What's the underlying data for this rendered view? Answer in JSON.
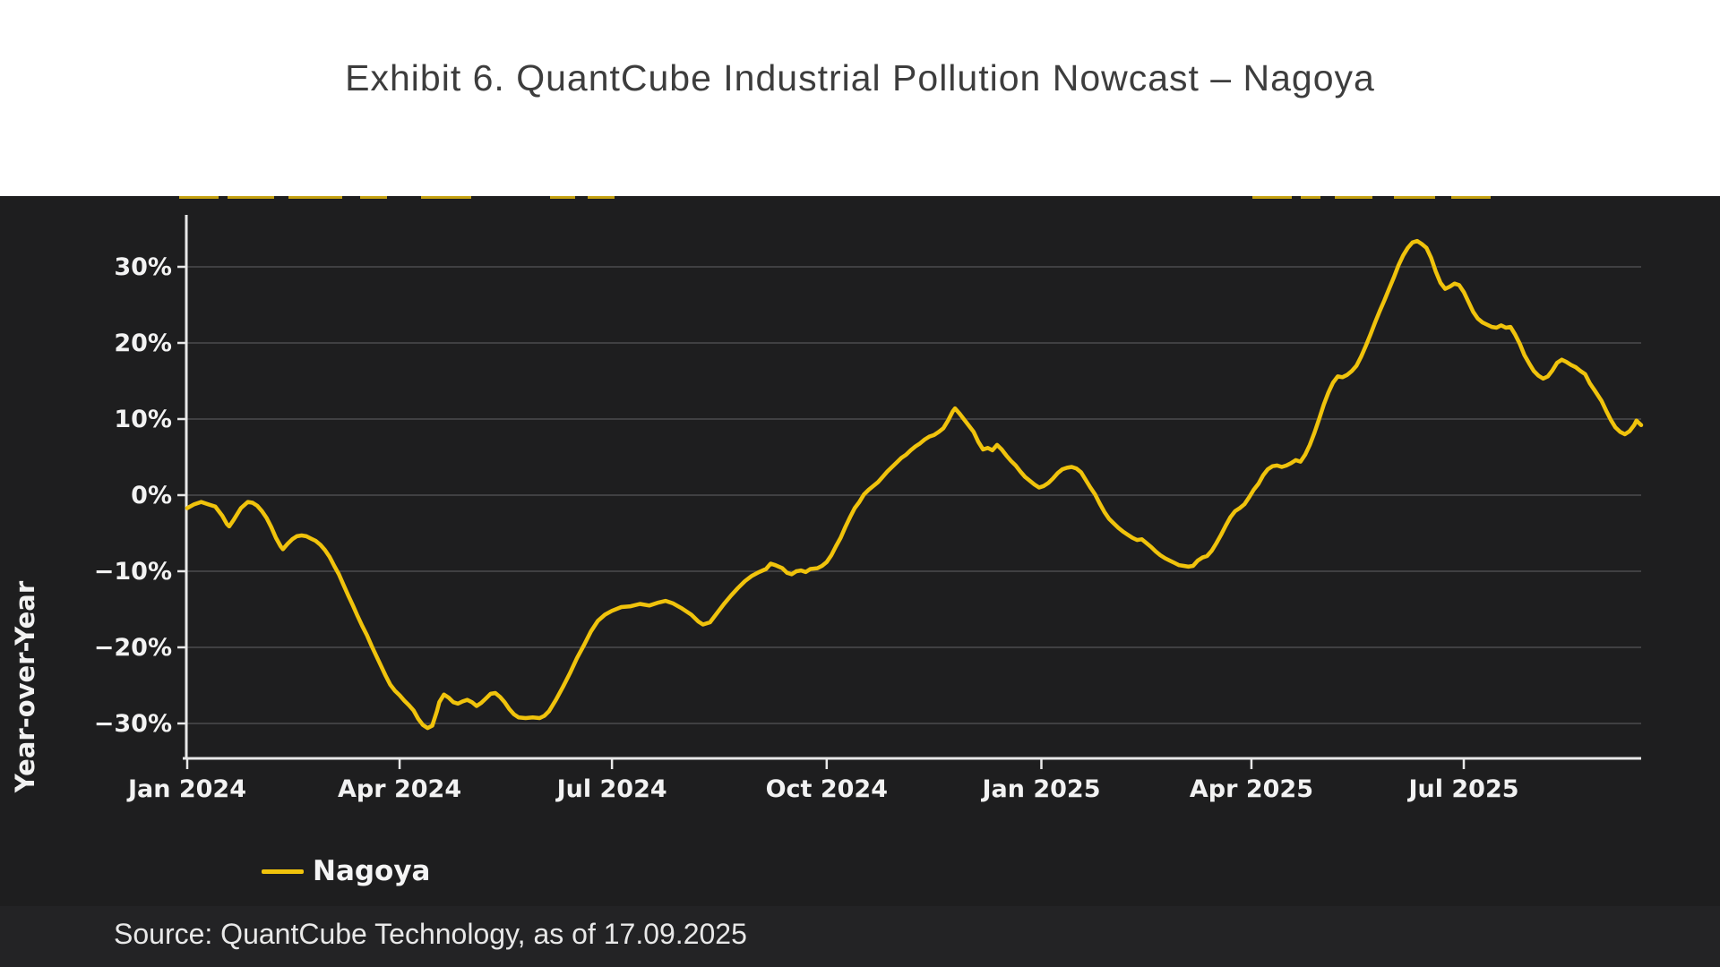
{
  "header": {
    "title": "Exhibit 6. QuantCube Industrial Pollution Nowcast – Nagoya"
  },
  "footer": {
    "source": "Source: QuantCube Technology, as of 17.09.2025"
  },
  "legend": {
    "items": [
      {
        "label": "Nagoya",
        "color": "#f0c30c"
      }
    ]
  },
  "colors": {
    "panel_background": "#1e1e1f",
    "footer_band": "#232325",
    "grid": "#4c4c4e",
    "axis": "#e8e8e8",
    "tick_text": "#f2f2f2",
    "line": "#f0c30c",
    "title_text": "#3d3d3d"
  },
  "chart_data": {
    "type": "line",
    "title": "Exhibit 6. QuantCube Industrial Pollution Nowcast – Nagoya",
    "xlabel": "",
    "ylabel": "Year-over-Year",
    "x_unit": "days since 2024-01-01",
    "xlim_days": [
      0,
      623
    ],
    "ylim": [
      -34.5,
      36.8
    ],
    "grid": "horizontal",
    "legend_position": "bottom-left",
    "yticks": [
      {
        "value": 30,
        "label": "30%"
      },
      {
        "value": 20,
        "label": "20%"
      },
      {
        "value": 10,
        "label": "10%"
      },
      {
        "value": 0,
        "label": "0%"
      },
      {
        "value": -10,
        "label": "−10%"
      },
      {
        "value": -20,
        "label": "−20%"
      },
      {
        "value": -30,
        "label": "−30%"
      }
    ],
    "xticks": [
      {
        "day": 0,
        "label": "Jan 2024"
      },
      {
        "day": 91,
        "label": "Apr 2024"
      },
      {
        "day": 182,
        "label": "Jul 2024"
      },
      {
        "day": 274,
        "label": "Oct 2024"
      },
      {
        "day": 366,
        "label": "Jan 2025"
      },
      {
        "day": 456,
        "label": "Apr 2025"
      },
      {
        "day": 547,
        "label": "Jul 2025"
      }
    ],
    "series": [
      {
        "name": "Nagoya",
        "color": "#f0c30c",
        "points": [
          [
            0,
            -1.7
          ],
          [
            3,
            -1.2
          ],
          [
            6,
            -0.9
          ],
          [
            9,
            -1.2
          ],
          [
            12,
            -1.5
          ],
          [
            15,
            -2.7
          ],
          [
            17,
            -3.8
          ],
          [
            18,
            -4.1
          ],
          [
            20,
            -3.2
          ],
          [
            23,
            -1.7
          ],
          [
            26,
            -0.9
          ],
          [
            28,
            -1.0
          ],
          [
            30,
            -1.4
          ],
          [
            32,
            -2.1
          ],
          [
            34,
            -3.0
          ],
          [
            36,
            -4.2
          ],
          [
            38,
            -5.6
          ],
          [
            40,
            -6.7
          ],
          [
            41,
            -7.1
          ],
          [
            43,
            -6.4
          ],
          [
            45,
            -5.8
          ],
          [
            47,
            -5.4
          ],
          [
            49,
            -5.3
          ],
          [
            51,
            -5.4
          ],
          [
            53,
            -5.7
          ],
          [
            55,
            -6.0
          ],
          [
            57,
            -6.5
          ],
          [
            59,
            -7.2
          ],
          [
            61,
            -8.1
          ],
          [
            63,
            -9.3
          ],
          [
            65,
            -10.4
          ],
          [
            67,
            -11.8
          ],
          [
            69,
            -13.2
          ],
          [
            71,
            -14.5
          ],
          [
            73,
            -15.9
          ],
          [
            75,
            -17.2
          ],
          [
            77,
            -18.4
          ],
          [
            79,
            -19.8
          ],
          [
            81,
            -21.1
          ],
          [
            83,
            -22.4
          ],
          [
            85,
            -23.7
          ],
          [
            87,
            -24.9
          ],
          [
            89,
            -25.7
          ],
          [
            91,
            -26.3
          ],
          [
            93,
            -27.0
          ],
          [
            95,
            -27.6
          ],
          [
            97,
            -28.3
          ],
          [
            99,
            -29.4
          ],
          [
            101,
            -30.2
          ],
          [
            103,
            -30.6
          ],
          [
            105,
            -30.3
          ],
          [
            107,
            -28.4
          ],
          [
            108,
            -27.2
          ],
          [
            110,
            -26.2
          ],
          [
            112,
            -26.6
          ],
          [
            114,
            -27.2
          ],
          [
            116,
            -27.4
          ],
          [
            118,
            -27.1
          ],
          [
            120,
            -26.9
          ],
          [
            122,
            -27.2
          ],
          [
            124,
            -27.7
          ],
          [
            126,
            -27.3
          ],
          [
            128,
            -26.7
          ],
          [
            130,
            -26.1
          ],
          [
            132,
            -26.0
          ],
          [
            134,
            -26.5
          ],
          [
            136,
            -27.2
          ],
          [
            138,
            -28.1
          ],
          [
            140,
            -28.8
          ],
          [
            142,
            -29.2
          ],
          [
            145,
            -29.3
          ],
          [
            148,
            -29.2
          ],
          [
            151,
            -29.3
          ],
          [
            153,
            -29.0
          ],
          [
            155,
            -28.4
          ],
          [
            158,
            -26.9
          ],
          [
            161,
            -25.2
          ],
          [
            164,
            -23.4
          ],
          [
            167,
            -21.4
          ],
          [
            170,
            -19.7
          ],
          [
            173,
            -17.9
          ],
          [
            176,
            -16.5
          ],
          [
            179,
            -15.7
          ],
          [
            182,
            -15.2
          ],
          [
            186,
            -14.7
          ],
          [
            190,
            -14.6
          ],
          [
            194,
            -14.3
          ],
          [
            198,
            -14.5
          ],
          [
            202,
            -14.1
          ],
          [
            205,
            -13.9
          ],
          [
            208,
            -14.2
          ],
          [
            212,
            -14.9
          ],
          [
            216,
            -15.7
          ],
          [
            219,
            -16.6
          ],
          [
            221,
            -17.0
          ],
          [
            224,
            -16.7
          ],
          [
            227,
            -15.5
          ],
          [
            230,
            -14.3
          ],
          [
            233,
            -13.2
          ],
          [
            236,
            -12.2
          ],
          [
            239,
            -11.3
          ],
          [
            242,
            -10.6
          ],
          [
            245,
            -10.1
          ],
          [
            248,
            -9.7
          ],
          [
            250,
            -9.0
          ],
          [
            252,
            -9.2
          ],
          [
            255,
            -9.6
          ],
          [
            257,
            -10.2
          ],
          [
            259,
            -10.4
          ],
          [
            261,
            -10.0
          ],
          [
            263,
            -9.9
          ],
          [
            265,
            -10.1
          ],
          [
            267,
            -9.7
          ],
          [
            270,
            -9.6
          ],
          [
            272,
            -9.3
          ],
          [
            274,
            -8.8
          ],
          [
            276,
            -7.9
          ],
          [
            278,
            -6.7
          ],
          [
            280,
            -5.6
          ],
          [
            282,
            -4.2
          ],
          [
            284,
            -2.9
          ],
          [
            286,
            -1.7
          ],
          [
            288,
            -0.9
          ],
          [
            290,
            0.1
          ],
          [
            292,
            0.7
          ],
          [
            294,
            1.2
          ],
          [
            296,
            1.7
          ],
          [
            298,
            2.4
          ],
          [
            300,
            3.1
          ],
          [
            302,
            3.7
          ],
          [
            304,
            4.3
          ],
          [
            306,
            4.9
          ],
          [
            308,
            5.3
          ],
          [
            310,
            5.9
          ],
          [
            312,
            6.4
          ],
          [
            314,
            6.8
          ],
          [
            316,
            7.3
          ],
          [
            318,
            7.7
          ],
          [
            320,
            7.9
          ],
          [
            322,
            8.3
          ],
          [
            324,
            8.8
          ],
          [
            326,
            9.8
          ],
          [
            328,
            11.0
          ],
          [
            329,
            11.4
          ],
          [
            331,
            10.7
          ],
          [
            333,
            9.9
          ],
          [
            335,
            9.1
          ],
          [
            337,
            8.3
          ],
          [
            339,
            7.0
          ],
          [
            341,
            6.0
          ],
          [
            343,
            6.2
          ],
          [
            345,
            5.9
          ],
          [
            347,
            6.6
          ],
          [
            349,
            6.0
          ],
          [
            351,
            5.2
          ],
          [
            353,
            4.5
          ],
          [
            355,
            3.9
          ],
          [
            357,
            3.1
          ],
          [
            359,
            2.4
          ],
          [
            361,
            1.9
          ],
          [
            363,
            1.4
          ],
          [
            365,
            1.0
          ],
          [
            367,
            1.2
          ],
          [
            369,
            1.6
          ],
          [
            371,
            2.2
          ],
          [
            373,
            2.9
          ],
          [
            375,
            3.4
          ],
          [
            377,
            3.6
          ],
          [
            379,
            3.7
          ],
          [
            381,
            3.5
          ],
          [
            383,
            3.0
          ],
          [
            385,
            2.0
          ],
          [
            387,
            1.0
          ],
          [
            389,
            0.1
          ],
          [
            391,
            -1.1
          ],
          [
            393,
            -2.2
          ],
          [
            395,
            -3.1
          ],
          [
            397,
            -3.7
          ],
          [
            399,
            -4.3
          ],
          [
            401,
            -4.8
          ],
          [
            403,
            -5.2
          ],
          [
            405,
            -5.6
          ],
          [
            407,
            -5.9
          ],
          [
            409,
            -5.8
          ],
          [
            411,
            -6.3
          ],
          [
            413,
            -6.8
          ],
          [
            415,
            -7.4
          ],
          [
            417,
            -7.9
          ],
          [
            419,
            -8.3
          ],
          [
            421,
            -8.6
          ],
          [
            423,
            -8.9
          ],
          [
            425,
            -9.2
          ],
          [
            427,
            -9.3
          ],
          [
            429,
            -9.4
          ],
          [
            431,
            -9.3
          ],
          [
            433,
            -8.6
          ],
          [
            435,
            -8.2
          ],
          [
            437,
            -8.0
          ],
          [
            439,
            -7.3
          ],
          [
            441,
            -6.3
          ],
          [
            443,
            -5.2
          ],
          [
            445,
            -4.0
          ],
          [
            447,
            -2.9
          ],
          [
            449,
            -2.1
          ],
          [
            451,
            -1.7
          ],
          [
            453,
            -1.2
          ],
          [
            455,
            -0.3
          ],
          [
            457,
            0.7
          ],
          [
            459,
            1.5
          ],
          [
            461,
            2.6
          ],
          [
            463,
            3.4
          ],
          [
            465,
            3.8
          ],
          [
            467,
            3.9
          ],
          [
            469,
            3.7
          ],
          [
            471,
            3.9
          ],
          [
            473,
            4.2
          ],
          [
            475,
            4.6
          ],
          [
            477,
            4.4
          ],
          [
            479,
            5.3
          ],
          [
            481,
            6.6
          ],
          [
            483,
            8.2
          ],
          [
            485,
            10.0
          ],
          [
            487,
            11.9
          ],
          [
            489,
            13.5
          ],
          [
            491,
            14.8
          ],
          [
            493,
            15.6
          ],
          [
            495,
            15.5
          ],
          [
            497,
            15.8
          ],
          [
            499,
            16.3
          ],
          [
            501,
            17.0
          ],
          [
            503,
            18.2
          ],
          [
            505,
            19.6
          ],
          [
            507,
            21.1
          ],
          [
            509,
            22.7
          ],
          [
            511,
            24.2
          ],
          [
            513,
            25.6
          ],
          [
            515,
            27.1
          ],
          [
            517,
            28.6
          ],
          [
            519,
            30.2
          ],
          [
            521,
            31.5
          ],
          [
            523,
            32.5
          ],
          [
            525,
            33.2
          ],
          [
            527,
            33.4
          ],
          [
            529,
            33.0
          ],
          [
            531,
            32.5
          ],
          [
            533,
            31.2
          ],
          [
            535,
            29.4
          ],
          [
            537,
            27.9
          ],
          [
            539,
            27.1
          ],
          [
            541,
            27.4
          ],
          [
            543,
            27.8
          ],
          [
            545,
            27.6
          ],
          [
            547,
            26.7
          ],
          [
            549,
            25.4
          ],
          [
            551,
            24.1
          ],
          [
            553,
            23.2
          ],
          [
            555,
            22.7
          ],
          [
            557,
            22.4
          ],
          [
            559,
            22.1
          ],
          [
            561,
            22.0
          ],
          [
            563,
            22.3
          ],
          [
            565,
            22.0
          ],
          [
            567,
            22.1
          ],
          [
            569,
            21.1
          ],
          [
            571,
            19.9
          ],
          [
            573,
            18.4
          ],
          [
            575,
            17.3
          ],
          [
            577,
            16.3
          ],
          [
            579,
            15.7
          ],
          [
            581,
            15.3
          ],
          [
            583,
            15.6
          ],
          [
            585,
            16.4
          ],
          [
            587,
            17.4
          ],
          [
            589,
            17.8
          ],
          [
            591,
            17.5
          ],
          [
            593,
            17.1
          ],
          [
            595,
            16.8
          ],
          [
            597,
            16.3
          ],
          [
            599,
            15.9
          ],
          [
            601,
            14.7
          ],
          [
            603,
            13.8
          ],
          [
            606,
            12.4
          ],
          [
            608,
            11.1
          ],
          [
            610,
            9.9
          ],
          [
            612,
            8.9
          ],
          [
            614,
            8.3
          ],
          [
            616,
            8.0
          ],
          [
            618,
            8.4
          ],
          [
            620,
            9.2
          ],
          [
            621,
            9.8
          ],
          [
            622,
            9.5
          ],
          [
            623,
            9.2
          ]
        ]
      }
    ]
  }
}
